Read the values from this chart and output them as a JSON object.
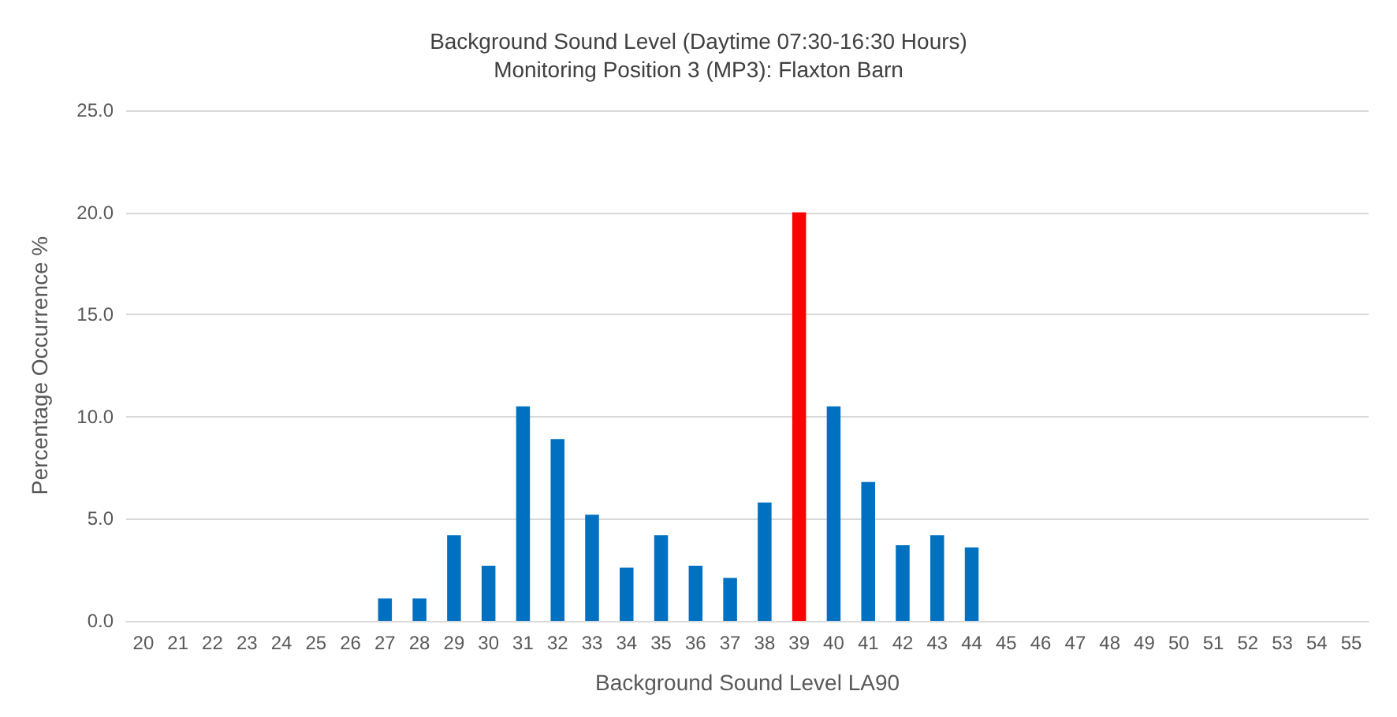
{
  "chart_data": {
    "type": "bar",
    "title": "Background Sound Level (Daytime 07:30-16:30 Hours)",
    "subtitle": "Monitoring Position 3 (MP3): Flaxton Barn",
    "xlabel": "Background Sound Level LA90",
    "ylabel": "Percentage Occurrence %",
    "categories": [
      "20",
      "21",
      "22",
      "23",
      "24",
      "25",
      "26",
      "27",
      "28",
      "29",
      "30",
      "31",
      "32",
      "33",
      "34",
      "35",
      "36",
      "37",
      "38",
      "39",
      "40",
      "41",
      "42",
      "43",
      "44",
      "45",
      "46",
      "47",
      "48",
      "49",
      "50",
      "51",
      "52",
      "53",
      "54",
      "55"
    ],
    "values": [
      0,
      0,
      0,
      0,
      0,
      0,
      0,
      1.1,
      1.1,
      4.2,
      2.7,
      10.5,
      8.9,
      5.2,
      2.6,
      4.2,
      2.7,
      2.1,
      5.8,
      20,
      10.5,
      6.8,
      3.7,
      4.2,
      3.6,
      0,
      0,
      0,
      0,
      0,
      0,
      0,
      0,
      0,
      0,
      0
    ],
    "colors": [
      "#0070c0",
      "#0070c0",
      "#0070c0",
      "#0070c0",
      "#0070c0",
      "#0070c0",
      "#0070c0",
      "#0070c0",
      "#0070c0",
      "#0070c0",
      "#0070c0",
      "#0070c0",
      "#0070c0",
      "#0070c0",
      "#0070c0",
      "#0070c0",
      "#0070c0",
      "#0070c0",
      "#0070c0",
      "#ff0000",
      "#0070c0",
      "#0070c0",
      "#0070c0",
      "#0070c0",
      "#0070c0",
      "#0070c0",
      "#0070c0",
      "#0070c0",
      "#0070c0",
      "#0070c0",
      "#0070c0",
      "#0070c0",
      "#0070c0",
      "#0070c0",
      "#0070c0",
      "#0070c0"
    ],
    "ylim": [
      0,
      25
    ],
    "yticks": [
      {
        "value": 0,
        "label": "0.0"
      },
      {
        "value": 5,
        "label": "5.0"
      },
      {
        "value": 10,
        "label": "10.0"
      },
      {
        "value": 15,
        "label": "15.0"
      },
      {
        "value": 20,
        "label": "20.0"
      },
      {
        "value": 25,
        "label": "25.0"
      }
    ],
    "grid": "y"
  }
}
